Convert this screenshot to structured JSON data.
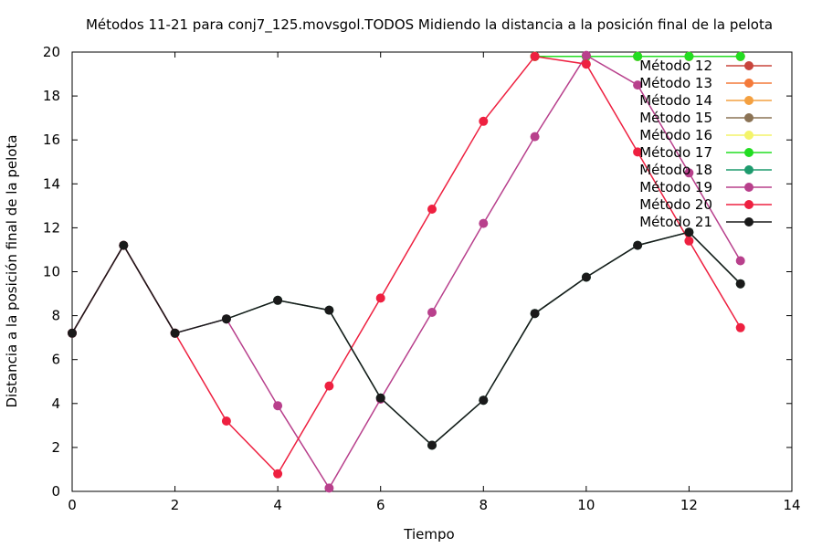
{
  "chart_data": {
    "type": "line",
    "title": "Métodos 11-21 para conj7_125.movsgol.TODOS Midiendo la distancia a la posición final de la pelota",
    "xlabel": "Tiempo",
    "ylabel": "Distancia a la posición final de la pelota",
    "xlim": [
      0,
      14
    ],
    "ylim": [
      0,
      20
    ],
    "xticks": [
      "0",
      "2",
      "4",
      "6",
      "8",
      "10",
      "12",
      "14"
    ],
    "yticks": [
      "0",
      "2",
      "4",
      "6",
      "8",
      "10",
      "12",
      "14",
      "16",
      "18",
      "20"
    ],
    "grid": false,
    "legend_position": "top-right",
    "series": [
      {
        "name": "Método 12",
        "color": "#c8453c",
        "x": [
          9,
          10,
          11,
          12,
          13
        ],
        "y": [
          19.8,
          19.8,
          19.8,
          19.8,
          19.8
        ]
      },
      {
        "name": "Método 13",
        "color": "#f47a3a",
        "x": [
          9,
          10,
          11,
          12,
          13
        ],
        "y": [
          19.8,
          19.8,
          19.8,
          19.8,
          19.8
        ]
      },
      {
        "name": "Método 14",
        "color": "#f4a040",
        "x": [
          9,
          10,
          11,
          12,
          13
        ],
        "y": [
          19.8,
          19.8,
          19.8,
          19.8,
          19.8
        ]
      },
      {
        "name": "Método 15",
        "color": "#8b7355",
        "x": [
          9,
          10,
          11,
          12,
          13
        ],
        "y": [
          19.8,
          19.8,
          19.8,
          19.8,
          19.8
        ]
      },
      {
        "name": "Método 16",
        "color": "#f4f46a",
        "x": [
          9,
          10,
          11,
          12,
          13
        ],
        "y": [
          19.8,
          19.8,
          19.8,
          19.8,
          19.8
        ]
      },
      {
        "name": "Método 17",
        "color": "#22dd22",
        "x": [
          9,
          10,
          11,
          12,
          13
        ],
        "y": [
          19.8,
          19.8,
          19.8,
          19.8,
          19.8
        ]
      },
      {
        "name": "Método 18",
        "color": "#1e9b6e",
        "x": [
          0,
          1,
          2,
          3,
          4,
          5,
          6,
          7,
          8,
          9,
          10,
          11,
          12,
          13
        ],
        "y": [
          7.2,
          11.2,
          7.2,
          7.85,
          8.7,
          8.25,
          4.25,
          2.1,
          4.15,
          8.1,
          9.75,
          11.2,
          11.8,
          9.45
        ]
      },
      {
        "name": "Método 19",
        "color": "#b8408c",
        "x": [
          0,
          1,
          2,
          3,
          4,
          5,
          6,
          7,
          8,
          9,
          10,
          11,
          12,
          13
        ],
        "y": [
          7.2,
          11.2,
          7.2,
          7.85,
          3.9,
          0.15,
          4.2,
          8.15,
          12.2,
          16.15,
          19.85,
          18.5,
          14.5,
          10.5
        ]
      },
      {
        "name": "Método 20",
        "color": "#ee2040",
        "x": [
          0,
          1,
          2,
          3,
          4,
          5,
          6,
          7,
          8,
          9,
          10,
          11,
          12,
          13
        ],
        "y": [
          7.2,
          11.2,
          7.2,
          3.2,
          0.8,
          4.8,
          8.8,
          12.85,
          16.85,
          19.8,
          19.45,
          15.45,
          11.4,
          7.45
        ]
      },
      {
        "name": "Método 21",
        "color": "#1a1a1a",
        "x": [
          0,
          1,
          2,
          3,
          4,
          5,
          6,
          7,
          8,
          9,
          10,
          11,
          12,
          13
        ],
        "y": [
          7.2,
          11.2,
          7.2,
          7.85,
          8.7,
          8.25,
          4.25,
          2.1,
          4.15,
          8.1,
          9.75,
          11.2,
          11.8,
          9.45
        ]
      }
    ]
  }
}
